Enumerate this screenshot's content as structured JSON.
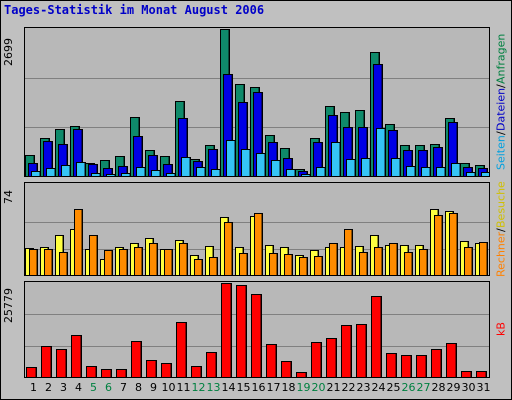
{
  "title": "Tages-Statistik im Monat August 2006",
  "colors": {
    "background": "#c0c0c0",
    "title": "#0000c8",
    "weekday": "#000000",
    "weekend": "#008040",
    "anfragen": "#0f8a6a",
    "dateien": "#0000e6",
    "seiten": "#35c4f5",
    "besuche": "#ffff40",
    "rechner": "#ff8c00",
    "kb": "#ff0000"
  },
  "right_labels": {
    "top": [
      {
        "text": "Anfragen",
        "color": "#008040"
      },
      {
        "text": "Dateien",
        "color": "#0000c8"
      },
      {
        "text": "Seiten",
        "color": "#00a0e0"
      }
    ],
    "middle": [
      {
        "text": "Besuche",
        "color": "#d0c000"
      },
      {
        "text": "Rechner",
        "color": "#ff8000"
      }
    ],
    "bottom": [
      {
        "text": "kB",
        "color": "#ff0000"
      }
    ],
    "separator": " / "
  },
  "chart_data": [
    {
      "type": "bar",
      "name": "top-panel",
      "y_max_label": "2699",
      "ylim": [
        0,
        2699
      ],
      "grid": true,
      "categories": [
        "1",
        "2",
        "3",
        "4",
        "5",
        "6",
        "7",
        "8",
        "9",
        "10",
        "11",
        "12",
        "13",
        "14",
        "15",
        "16",
        "17",
        "18",
        "19",
        "20",
        "21",
        "22",
        "23",
        "24",
        "25",
        "26",
        "27",
        "28",
        "29",
        "30",
        "31"
      ],
      "weekend": [
        false,
        false,
        false,
        false,
        true,
        true,
        false,
        false,
        false,
        false,
        false,
        true,
        true,
        false,
        false,
        false,
        false,
        false,
        true,
        true,
        false,
        false,
        false,
        false,
        false,
        true,
        true,
        false,
        false,
        false,
        false
      ],
      "series": [
        {
          "name": "Anfragen",
          "color": "#0f8a6a",
          "values": [
            380,
            700,
            860,
            920,
            240,
            290,
            360,
            1080,
            470,
            360,
            1380,
            320,
            560,
            2699,
            1680,
            1640,
            760,
            510,
            120,
            700,
            1280,
            1180,
            1220,
            2280,
            960,
            560,
            560,
            590,
            1060,
            230,
            200
          ]
        },
        {
          "name": "Dateien",
          "color": "#0000e6",
          "values": [
            240,
            640,
            580,
            860,
            220,
            140,
            190,
            740,
            380,
            220,
            1060,
            280,
            490,
            1880,
            1360,
            1540,
            620,
            330,
            90,
            630,
            1120,
            900,
            900,
            2060,
            840,
            480,
            470,
            540,
            1000,
            170,
            150
          ]
        },
        {
          "name": "Seiten",
          "color": "#35c4f5",
          "values": [
            90,
            140,
            200,
            250,
            60,
            40,
            60,
            170,
            110,
            60,
            350,
            170,
            120,
            670,
            490,
            420,
            290,
            130,
            40,
            160,
            630,
            310,
            330,
            880,
            330,
            190,
            160,
            160,
            240,
            70,
            70
          ]
        }
      ]
    },
    {
      "type": "bar",
      "name": "middle-panel",
      "y_max_label": "74",
      "ylim": [
        0,
        74
      ],
      "grid": true,
      "categories": [
        "1",
        "2",
        "3",
        "4",
        "5",
        "6",
        "7",
        "8",
        "9",
        "10",
        "11",
        "12",
        "13",
        "14",
        "15",
        "16",
        "17",
        "18",
        "19",
        "20",
        "21",
        "22",
        "23",
        "24",
        "25",
        "26",
        "27",
        "28",
        "29",
        "30",
        "31"
      ],
      "series": [
        {
          "name": "Besuche",
          "color": "#ffff40",
          "values": [
            25,
            26,
            37,
            43,
            24,
            15,
            26,
            30,
            35,
            24,
            33,
            19,
            27,
            54,
            26,
            55,
            28,
            26,
            19,
            23,
            26,
            26,
            27,
            37,
            28,
            28,
            28,
            62,
            60,
            32,
            30
          ]
        },
        {
          "name": "Rechner",
          "color": "#ff8c00",
          "values": [
            24,
            24,
            22,
            62,
            37,
            23,
            24,
            26,
            30,
            24,
            30,
            15,
            17,
            50,
            21,
            58,
            21,
            20,
            17,
            18,
            30,
            43,
            22,
            26,
            30,
            22,
            24,
            56,
            58,
            26,
            31
          ]
        }
      ]
    },
    {
      "type": "bar",
      "name": "bottom-panel",
      "y_max_label": "25779",
      "ylim": [
        0,
        25779
      ],
      "grid": true,
      "categories": [
        "1",
        "2",
        "3",
        "4",
        "5",
        "6",
        "7",
        "8",
        "9",
        "10",
        "11",
        "12",
        "13",
        "14",
        "15",
        "16",
        "17",
        "18",
        "19",
        "20",
        "21",
        "22",
        "23",
        "24",
        "25",
        "26",
        "27",
        "28",
        "29",
        "30",
        "31"
      ],
      "series": [
        {
          "name": "kB",
          "color": "#ff0000",
          "values": [
            2700,
            8400,
            7600,
            11600,
            3100,
            2200,
            2300,
            9900,
            4600,
            3800,
            15200,
            3100,
            6800,
            25779,
            25300,
            22800,
            9000,
            4300,
            1300,
            9600,
            10600,
            14200,
            14600,
            22200,
            6500,
            6100,
            6100,
            7700,
            9400,
            1700,
            1700
          ]
        }
      ]
    }
  ]
}
